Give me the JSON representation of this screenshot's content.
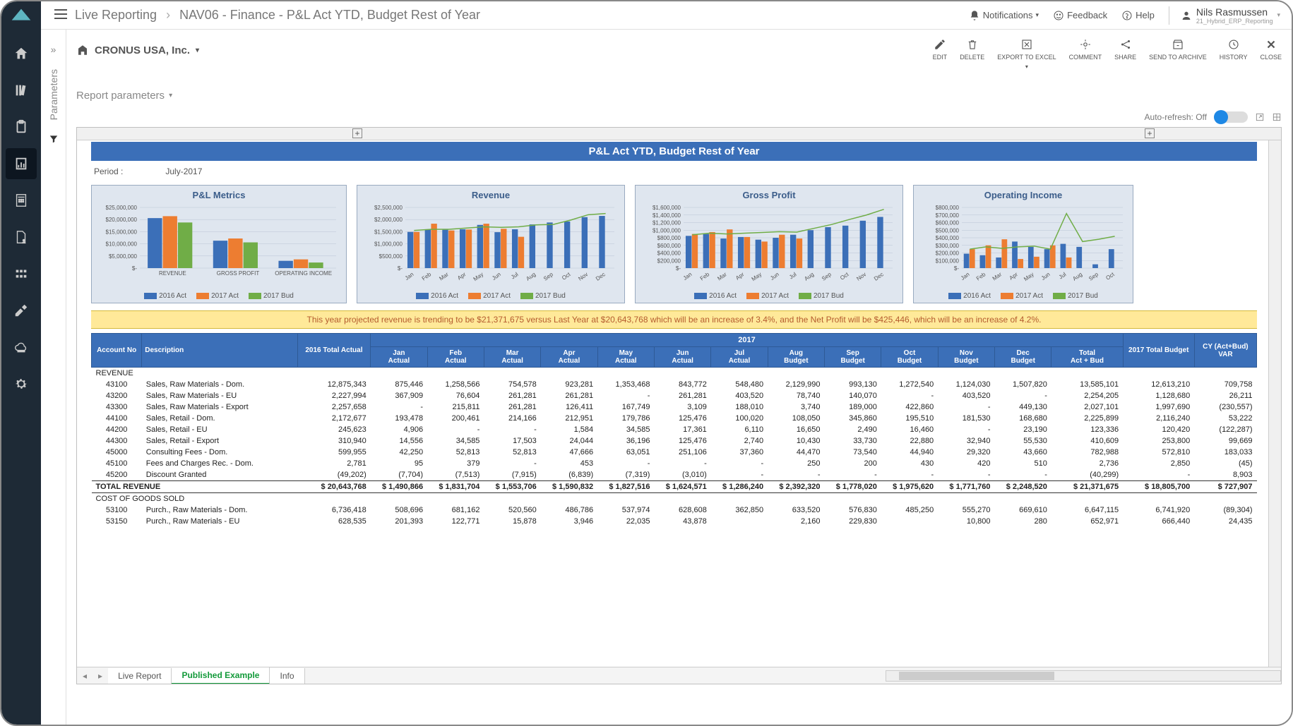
{
  "breadcrumb": {
    "root": "Live Reporting",
    "page": "NAV06 - Finance - P&L Act YTD, Budget Rest of Year"
  },
  "topbar": {
    "notifications": "Notifications",
    "feedback": "Feedback",
    "help": "Help",
    "user": "Nils Rasmussen",
    "usersub": "21_Hybrid_ERP_Reporting"
  },
  "params_label": "Parameters",
  "company": "CRONUS USA, Inc.",
  "actions": {
    "edit": "EDIT",
    "delete": "DELETE",
    "export": "EXPORT TO EXCEL",
    "comment": "COMMENT",
    "share": "SHARE",
    "archive": "SEND TO ARCHIVE",
    "history": "HISTORY",
    "close": "CLOSE"
  },
  "report_params": "Report parameters",
  "auto_refresh": "Auto-refresh: Off",
  "report_title": "P&L Act YTD, Budget Rest of Year",
  "period_label": "Period :",
  "period_value": "July-2017",
  "colors": {
    "s2016": "#3b6fb8",
    "s2017a": "#ed7d31",
    "s2017b": "#70ad47",
    "chartbg": "#dfe6ef"
  },
  "legend": {
    "a": "2016 Act",
    "b": "2017 Act",
    "c": "2017 Bud"
  },
  "chart1": {
    "title": "P&L Metrics",
    "ylabels": [
      "$25,000,000",
      "$20,000,000",
      "$15,000,000",
      "$10,000,000",
      "$5,000,000",
      "$-"
    ],
    "cats": [
      "REVENUE",
      "GROSS PROFIT",
      "OPERATING INCOME"
    ],
    "data": [
      [
        20.6,
        21.4,
        18.8
      ],
      [
        11.3,
        12.2,
        10.6
      ],
      [
        3.0,
        3.6,
        2.3
      ]
    ],
    "ymax": 25
  },
  "chart2": {
    "title": "Revenue",
    "ylabels": [
      "$2,500,000",
      "$2,000,000",
      "$1,500,000",
      "$1,000,000",
      "$500,000",
      "$-"
    ],
    "cats": [
      "Jan",
      "Feb",
      "Mar",
      "Apr",
      "May",
      "Jun",
      "Jul",
      "Aug",
      "Sep",
      "Oct",
      "Nov",
      "Dec"
    ],
    "s2016": [
      1.49,
      1.6,
      1.58,
      1.6,
      1.78,
      1.48,
      1.6,
      1.8,
      1.88,
      1.92,
      2.1,
      2.15
    ],
    "s2017": [
      1.49,
      1.83,
      1.55,
      1.59,
      1.83,
      1.62,
      1.29,
      0,
      0,
      0,
      0,
      0
    ],
    "line": [
      1.55,
      1.6,
      1.6,
      1.65,
      1.7,
      1.68,
      1.7,
      1.78,
      1.8,
      1.98,
      2.2,
      2.25
    ],
    "ymax": 2.5
  },
  "chart3": {
    "title": "Gross Profit",
    "ylabels": [
      "$1,600,000",
      "$1,400,000",
      "$1,200,000",
      "$1,000,000",
      "$800,000",
      "$600,000",
      "$400,000",
      "$200,000",
      "$-"
    ],
    "cats": [
      "Jan",
      "Feb",
      "Mar",
      "Apr",
      "May",
      "Jun",
      "Jul",
      "Aug",
      "Sep",
      "Oct",
      "Nov",
      "Dec"
    ],
    "s2016": [
      0.85,
      0.9,
      0.78,
      0.82,
      0.75,
      0.8,
      0.88,
      1.0,
      1.08,
      1.12,
      1.25,
      1.35
    ],
    "s2017": [
      0.9,
      0.95,
      1.02,
      0.82,
      0.7,
      0.88,
      0.78,
      0,
      0,
      0,
      0,
      0
    ],
    "line": [
      0.88,
      0.92,
      0.9,
      0.92,
      0.94,
      0.96,
      0.95,
      1.05,
      1.15,
      1.28,
      1.4,
      1.55
    ],
    "ymax": 1.6
  },
  "chart4": {
    "title": "Operating Income",
    "ylabels": [
      "$800,000",
      "$700,000",
      "$600,000",
      "$500,000",
      "$400,000",
      "$300,000",
      "$200,000",
      "$100,000",
      "$-"
    ],
    "cats": [
      "Jan",
      "Feb",
      "Mar",
      "Apr",
      "May",
      "Jun",
      "Jul",
      "Aug",
      "Sep",
      "Oct"
    ],
    "s2016": [
      0.19,
      0.17,
      0.14,
      0.35,
      0.28,
      0.25,
      0.32,
      0.28,
      0.05,
      0.25
    ],
    "s2017": [
      0.25,
      0.3,
      0.38,
      0.12,
      0.15,
      0.3,
      0.14,
      0,
      0,
      0
    ],
    "line": [
      0.25,
      0.28,
      0.26,
      0.28,
      0.29,
      0.25,
      0.72,
      0.35,
      0.38,
      0.42
    ],
    "ymax": 0.8
  },
  "summary": "This year projected revenue is trending to be $21,371,675 versus Last Year at $20,643,768 which will be  an increase of 3.4%, and the Net Profit will be $425,446, which will be an increase of 4.2%.",
  "table": {
    "group2016": "2016 Total Actual",
    "group2017": "2017",
    "group2017t": "2017 Total Budget",
    "groupvar": "CY (Act+Bud) VAR",
    "cols": [
      "Account No",
      "Description",
      "",
      "Jan Actual",
      "Feb Actual",
      "Mar Actual",
      "Apr Actual",
      "May Actual",
      "Jun Actual",
      "Jul Actual",
      "Aug Budget",
      "Sep Budget",
      "Oct Budget",
      "Nov Budget",
      "Dec Budget",
      "Total Act + Bud",
      "",
      ""
    ],
    "section_revenue": "REVENUE",
    "rows_rev": [
      [
        "43100",
        "Sales, Raw Materials - Dom.",
        "12,875,343",
        "875,446",
        "1,258,566",
        "754,578",
        "923,281",
        "1,353,468",
        "843,772",
        "548,480",
        "2,129,990",
        "993,130",
        "1,272,540",
        "1,124,030",
        "1,507,820",
        "13,585,101",
        "12,613,210",
        "709,758"
      ],
      [
        "43200",
        "Sales, Raw Materials - EU",
        "2,227,994",
        "367,909",
        "76,604",
        "261,281",
        "261,281",
        "-",
        "261,281",
        "403,520",
        "78,740",
        "140,070",
        "-",
        "403,520",
        "-",
        "2,254,205",
        "1,128,680",
        "26,211"
      ],
      [
        "43300",
        "Sales, Raw Materials - Export",
        "2,257,658",
        "-",
        "215,811",
        "261,281",
        "126,411",
        "167,749",
        "3,109",
        "188,010",
        "3,740",
        "189,000",
        "422,860",
        "-",
        "449,130",
        "2,027,101",
        "1,997,690",
        "(230,557)"
      ],
      [
        "44100",
        "Sales, Retail - Dom.",
        "2,172,677",
        "193,478",
        "200,461",
        "214,166",
        "212,951",
        "179,786",
        "125,476",
        "100,020",
        "108,050",
        "345,860",
        "195,510",
        "181,530",
        "168,680",
        "2,225,899",
        "2,116,240",
        "53,222"
      ],
      [
        "44200",
        "Sales, Retail - EU",
        "245,623",
        "4,906",
        "-",
        "-",
        "1,584",
        "34,585",
        "17,361",
        "6,110",
        "16,650",
        "2,490",
        "16,460",
        "-",
        "23,190",
        "123,336",
        "120,420",
        "(122,287)"
      ],
      [
        "44300",
        "Sales, Retail - Export",
        "310,940",
        "14,556",
        "34,585",
        "17,503",
        "24,044",
        "36,196",
        "125,476",
        "2,740",
        "10,430",
        "33,730",
        "22,880",
        "32,940",
        "55,530",
        "410,609",
        "253,800",
        "99,669"
      ],
      [
        "45000",
        "Consulting Fees - Dom.",
        "599,955",
        "42,250",
        "52,813",
        "52,813",
        "47,666",
        "63,051",
        "251,106",
        "37,360",
        "44,470",
        "73,540",
        "44,940",
        "29,320",
        "43,660",
        "782,988",
        "572,810",
        "183,033"
      ],
      [
        "45100",
        "Fees and Charges Rec. - Dom.",
        "2,781",
        "95",
        "379",
        "-",
        "453",
        "-",
        "-",
        "-",
        "250",
        "200",
        "430",
        "420",
        "510",
        "2,736",
        "2,850",
        "(45)"
      ],
      [
        "45200",
        "Discount Granted",
        "(49,202)",
        "(7,704)",
        "(7,513)",
        "(7,915)",
        "(6,839)",
        "(7,319)",
        "(3,010)",
        "-",
        "-",
        "-",
        "-",
        "-",
        "-",
        "(40,299)",
        "-",
        "8,903"
      ]
    ],
    "total_rev_label": "TOTAL REVENUE",
    "total_rev": [
      "$ 20,643,768",
      "$ 1,490,866",
      "$ 1,831,704",
      "$ 1,553,706",
      "$ 1,590,832",
      "$ 1,827,516",
      "$ 1,624,571",
      "$ 1,286,240",
      "$ 2,392,320",
      "$ 1,778,020",
      "$ 1,975,620",
      "$ 1,771,760",
      "$ 2,248,520",
      "$ 21,371,675",
      "$ 18,805,700",
      "$   727,907"
    ],
    "section_cogs": "COST OF GOODS SOLD",
    "rows_cogs": [
      [
        "53100",
        "Purch., Raw Materials - Dom.",
        "6,736,418",
        "508,696",
        "681,162",
        "520,560",
        "486,786",
        "537,974",
        "628,608",
        "362,850",
        "633,520",
        "576,830",
        "485,250",
        "555,270",
        "669,610",
        "6,647,115",
        "6,741,920",
        "(89,304)"
      ],
      [
        "53150",
        "Purch., Raw Materials - EU",
        "628,535",
        "201,393",
        "122,771",
        "15,878",
        "3,946",
        "22,035",
        "43,878",
        "",
        "2,160",
        "229,830",
        "",
        "10,800",
        "280",
        "652,971",
        "666,440",
        "24,435"
      ]
    ]
  },
  "tabs": {
    "t1": "Live Report",
    "t2": "Published Example",
    "t3": "Info"
  }
}
